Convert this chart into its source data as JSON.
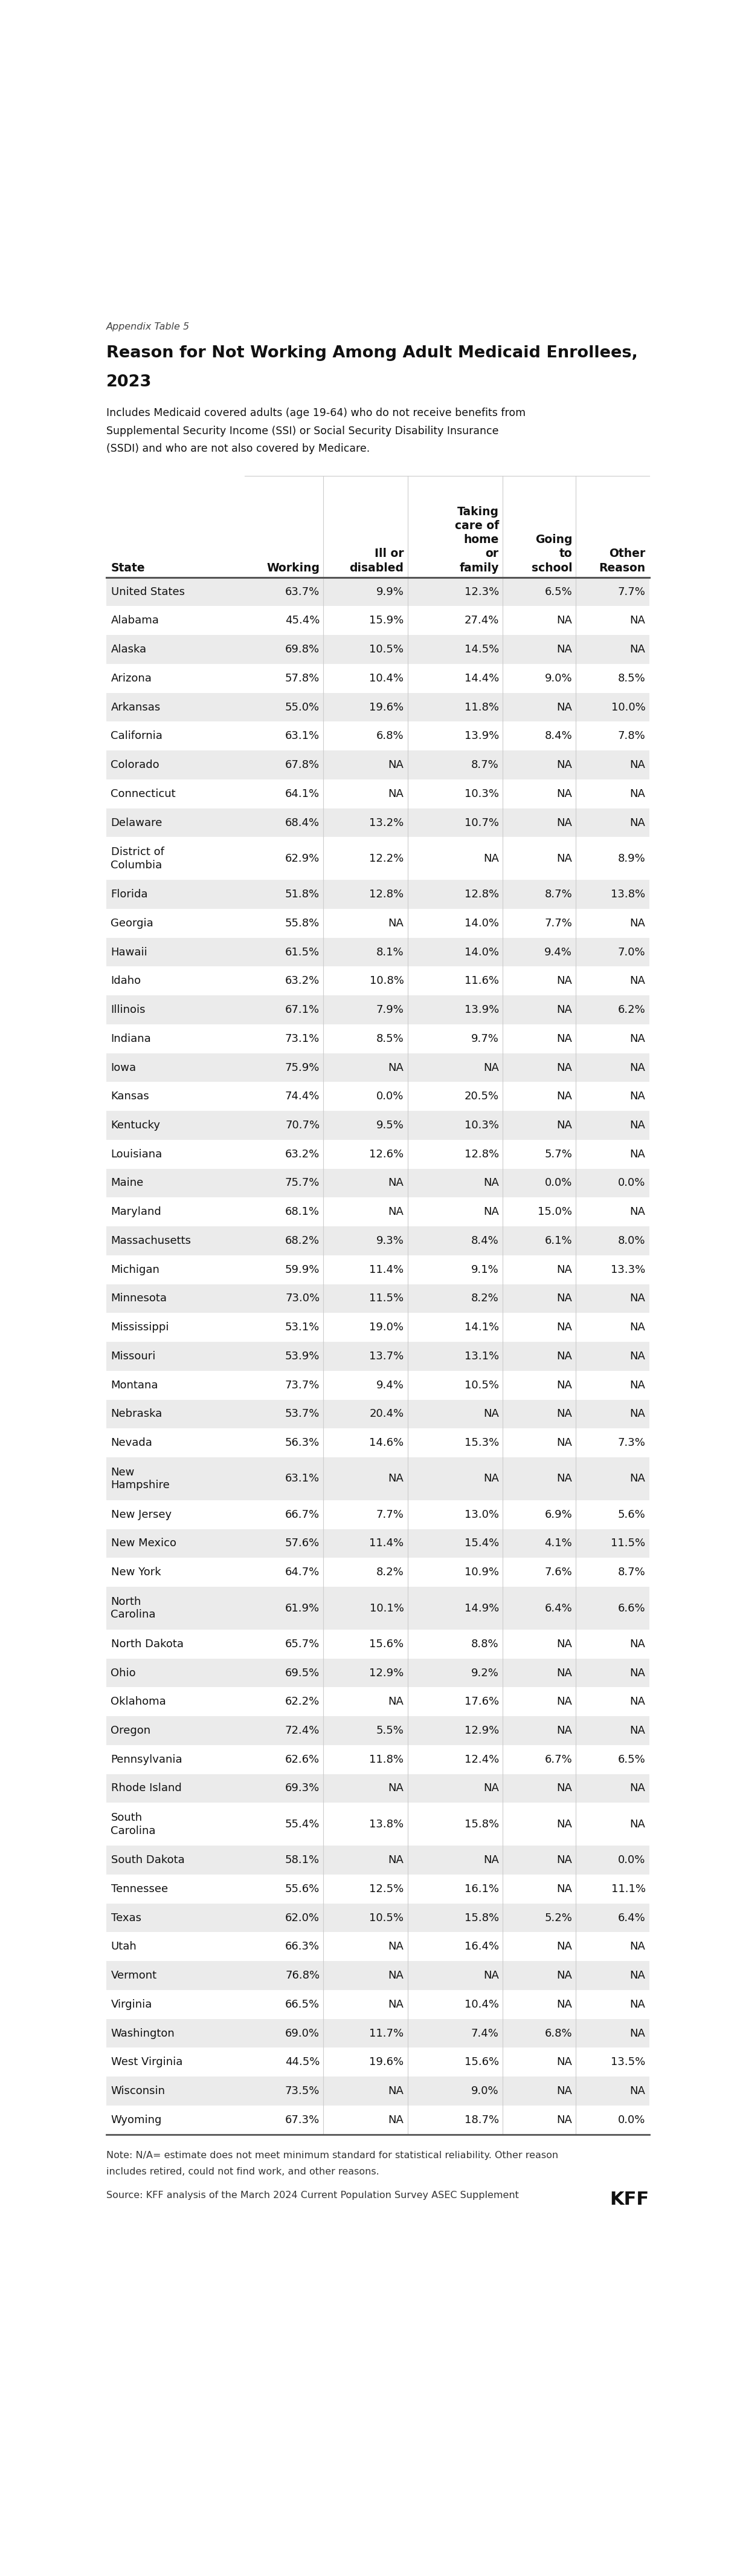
{
  "appendix_label": "Appendix Table 5",
  "title_line1": "Reason for Not Working Among Adult Medicaid Enrollees,",
  "title_line2": "2023",
  "subtitle": "Includes Medicaid covered adults (age 19-64) who do not receive benefits from\nSupplemental Security Income (SSI) or Social Security Disability Insurance\n(SSDI) and who are not also covered by Medicare.",
  "col_headers": [
    "State",
    "Working",
    "Ill or\ndisabled",
    "Taking\ncare of\nhome\nor\nfamily",
    "Going\nto\nschool",
    "Other\nReason"
  ],
  "col_header_bottom": [
    "State",
    "Working",
    "disabled",
    "family",
    "school",
    "Reason"
  ],
  "rows": [
    [
      "United States",
      "63.7%",
      "9.9%",
      "12.3%",
      "6.5%",
      "7.7%"
    ],
    [
      "Alabama",
      "45.4%",
      "15.9%",
      "27.4%",
      "NA",
      "NA"
    ],
    [
      "Alaska",
      "69.8%",
      "10.5%",
      "14.5%",
      "NA",
      "NA"
    ],
    [
      "Arizona",
      "57.8%",
      "10.4%",
      "14.4%",
      "9.0%",
      "8.5%"
    ],
    [
      "Arkansas",
      "55.0%",
      "19.6%",
      "11.8%",
      "NA",
      "10.0%"
    ],
    [
      "California",
      "63.1%",
      "6.8%",
      "13.9%",
      "8.4%",
      "7.8%"
    ],
    [
      "Colorado",
      "67.8%",
      "NA",
      "8.7%",
      "NA",
      "NA"
    ],
    [
      "Connecticut",
      "64.1%",
      "NA",
      "10.3%",
      "NA",
      "NA"
    ],
    [
      "Delaware",
      "68.4%",
      "13.2%",
      "10.7%",
      "NA",
      "NA"
    ],
    [
      "District of\nColumbia",
      "62.9%",
      "12.2%",
      "NA",
      "NA",
      "8.9%"
    ],
    [
      "Florida",
      "51.8%",
      "12.8%",
      "12.8%",
      "8.7%",
      "13.8%"
    ],
    [
      "Georgia",
      "55.8%",
      "NA",
      "14.0%",
      "7.7%",
      "NA"
    ],
    [
      "Hawaii",
      "61.5%",
      "8.1%",
      "14.0%",
      "9.4%",
      "7.0%"
    ],
    [
      "Idaho",
      "63.2%",
      "10.8%",
      "11.6%",
      "NA",
      "NA"
    ],
    [
      "Illinois",
      "67.1%",
      "7.9%",
      "13.9%",
      "NA",
      "6.2%"
    ],
    [
      "Indiana",
      "73.1%",
      "8.5%",
      "9.7%",
      "NA",
      "NA"
    ],
    [
      "Iowa",
      "75.9%",
      "NA",
      "NA",
      "NA",
      "NA"
    ],
    [
      "Kansas",
      "74.4%",
      "0.0%",
      "20.5%",
      "NA",
      "NA"
    ],
    [
      "Kentucky",
      "70.7%",
      "9.5%",
      "10.3%",
      "NA",
      "NA"
    ],
    [
      "Louisiana",
      "63.2%",
      "12.6%",
      "12.8%",
      "5.7%",
      "NA"
    ],
    [
      "Maine",
      "75.7%",
      "NA",
      "NA",
      "0.0%",
      "0.0%"
    ],
    [
      "Maryland",
      "68.1%",
      "NA",
      "NA",
      "15.0%",
      "NA"
    ],
    [
      "Massachusetts",
      "68.2%",
      "9.3%",
      "8.4%",
      "6.1%",
      "8.0%"
    ],
    [
      "Michigan",
      "59.9%",
      "11.4%",
      "9.1%",
      "NA",
      "13.3%"
    ],
    [
      "Minnesota",
      "73.0%",
      "11.5%",
      "8.2%",
      "NA",
      "NA"
    ],
    [
      "Mississippi",
      "53.1%",
      "19.0%",
      "14.1%",
      "NA",
      "NA"
    ],
    [
      "Missouri",
      "53.9%",
      "13.7%",
      "13.1%",
      "NA",
      "NA"
    ],
    [
      "Montana",
      "73.7%",
      "9.4%",
      "10.5%",
      "NA",
      "NA"
    ],
    [
      "Nebraska",
      "53.7%",
      "20.4%",
      "NA",
      "NA",
      "NA"
    ],
    [
      "Nevada",
      "56.3%",
      "14.6%",
      "15.3%",
      "NA",
      "7.3%"
    ],
    [
      "New\nHampshire",
      "63.1%",
      "NA",
      "NA",
      "NA",
      "NA"
    ],
    [
      "New Jersey",
      "66.7%",
      "7.7%",
      "13.0%",
      "6.9%",
      "5.6%"
    ],
    [
      "New Mexico",
      "57.6%",
      "11.4%",
      "15.4%",
      "4.1%",
      "11.5%"
    ],
    [
      "New York",
      "64.7%",
      "8.2%",
      "10.9%",
      "7.6%",
      "8.7%"
    ],
    [
      "North\nCarolina",
      "61.9%",
      "10.1%",
      "14.9%",
      "6.4%",
      "6.6%"
    ],
    [
      "North Dakota",
      "65.7%",
      "15.6%",
      "8.8%",
      "NA",
      "NA"
    ],
    [
      "Ohio",
      "69.5%",
      "12.9%",
      "9.2%",
      "NA",
      "NA"
    ],
    [
      "Oklahoma",
      "62.2%",
      "NA",
      "17.6%",
      "NA",
      "NA"
    ],
    [
      "Oregon",
      "72.4%",
      "5.5%",
      "12.9%",
      "NA",
      "NA"
    ],
    [
      "Pennsylvania",
      "62.6%",
      "11.8%",
      "12.4%",
      "6.7%",
      "6.5%"
    ],
    [
      "Rhode Island",
      "69.3%",
      "NA",
      "NA",
      "NA",
      "NA"
    ],
    [
      "South\nCarolina",
      "55.4%",
      "13.8%",
      "15.8%",
      "NA",
      "NA"
    ],
    [
      "South Dakota",
      "58.1%",
      "NA",
      "NA",
      "NA",
      "0.0%"
    ],
    [
      "Tennessee",
      "55.6%",
      "12.5%",
      "16.1%",
      "NA",
      "11.1%"
    ],
    [
      "Texas",
      "62.0%",
      "10.5%",
      "15.8%",
      "5.2%",
      "6.4%"
    ],
    [
      "Utah",
      "66.3%",
      "NA",
      "16.4%",
      "NA",
      "NA"
    ],
    [
      "Vermont",
      "76.8%",
      "NA",
      "NA",
      "NA",
      "NA"
    ],
    [
      "Virginia",
      "66.5%",
      "NA",
      "10.4%",
      "NA",
      "NA"
    ],
    [
      "Washington",
      "69.0%",
      "11.7%",
      "7.4%",
      "6.8%",
      "NA"
    ],
    [
      "West Virginia",
      "44.5%",
      "19.6%",
      "15.6%",
      "NA",
      "13.5%"
    ],
    [
      "Wisconsin",
      "73.5%",
      "NA",
      "9.0%",
      "NA",
      "NA"
    ],
    [
      "Wyoming",
      "67.3%",
      "NA",
      "18.7%",
      "NA",
      "0.0%"
    ]
  ],
  "note_line1": "Note: N/A= estimate does not meet minimum standard for statistical reliability. Other reason",
  "note_line2": "includes retired, could not find work, and other reasons.",
  "source": "Source: KFF analysis of the March 2024 Current Population Survey ASEC Supplement",
  "bg_color_odd": "#ebebeb",
  "bg_color_even": "#ffffff",
  "text_color": "#1a1a1a",
  "header_line_color": "#555555",
  "sep_line_color": "#cccccc"
}
